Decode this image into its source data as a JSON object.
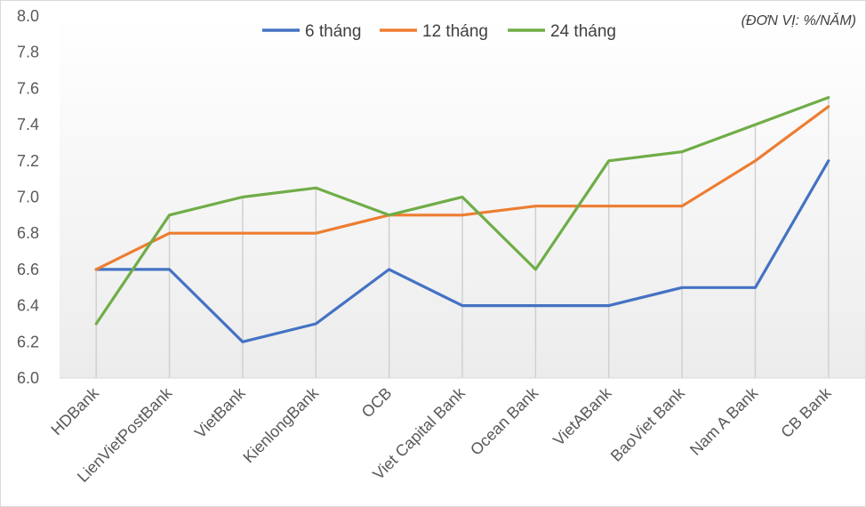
{
  "chart_data": {
    "type": "line",
    "unit_note": "(ĐƠN VỊ: %/NĂM)",
    "categories": [
      "HDBank",
      "LienVietPostBank",
      "VietBank",
      "KienlongBank",
      "OCB",
      "Viet Capital Bank",
      "Ocean Bank",
      "VietABank",
      "BaoViet  Bank",
      "Nam A Bank",
      "CB Bank"
    ],
    "series": [
      {
        "name": "6 tháng",
        "color": "#4472c4",
        "values": [
          6.6,
          6.6,
          6.2,
          6.3,
          6.6,
          6.4,
          6.4,
          6.4,
          6.5,
          6.5,
          7.2
        ]
      },
      {
        "name": "12 tháng",
        "color": "#ed7d31",
        "values": [
          6.6,
          6.8,
          6.8,
          6.8,
          6.9,
          6.9,
          6.95,
          6.95,
          6.95,
          7.2,
          7.5
        ]
      },
      {
        "name": "24 tháng",
        "color": "#70ad47",
        "values": [
          6.3,
          6.9,
          7.0,
          7.05,
          6.9,
          7.0,
          6.6,
          7.2,
          7.25,
          7.4,
          7.55
        ]
      }
    ],
    "ylim": [
      6.0,
      8.0
    ],
    "yticks": [
      "6.0",
      "6.2",
      "6.4",
      "6.6",
      "6.8",
      "7.0",
      "7.2",
      "7.4",
      "7.6",
      "7.8",
      "8.0"
    ],
    "legend_position": "top",
    "grid": "vertical drop lines per category",
    "xlabel": "",
    "ylabel": ""
  }
}
